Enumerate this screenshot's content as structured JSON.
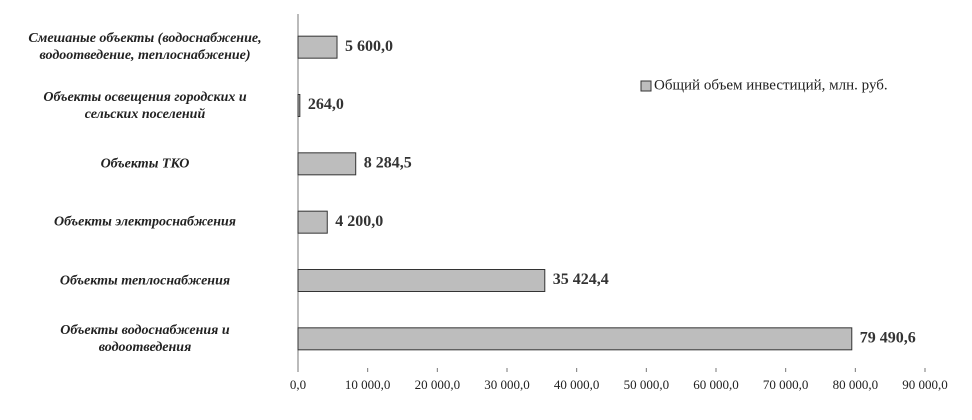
{
  "chart_data": {
    "type": "bar",
    "orientation": "horizontal",
    "categories": [
      "Смешаные объекты (водоснабжение,\nводоотведение, теплоснабжение)",
      "Объекты освещения городских и\nсельских поселений",
      "Объекты ТКО",
      "Объекты электроснабжения",
      "Объекты теплоснабжения",
      "Объекты водоснабжения и\nводоотведения"
    ],
    "series": [
      {
        "name": "Общий объем инвестиций, млн. руб.",
        "color": "#bdbdbd",
        "values": [
          5600.0,
          264.0,
          8284.5,
          4200.0,
          35424.4,
          79490.6
        ],
        "value_labels": [
          "5 600,0",
          "264,0",
          "8 284,5",
          "4 200,0",
          "35 424,4",
          "79 490,6"
        ]
      }
    ],
    "xlim": [
      0,
      90000
    ],
    "xticks": [
      {
        "value": 0,
        "label": "0,0"
      },
      {
        "value": 10000,
        "label": "10 000,0"
      },
      {
        "value": 20000,
        "label": "20 000,0"
      },
      {
        "value": 30000,
        "label": "30 000,0"
      },
      {
        "value": 40000,
        "label": "40 000,0"
      },
      {
        "value": 50000,
        "label": "50 000,0"
      },
      {
        "value": 60000,
        "label": "60 000,0"
      },
      {
        "value": 70000,
        "label": "70 000,0"
      },
      {
        "value": 80000,
        "label": "80 000,0"
      },
      {
        "value": 90000,
        "label": "90 000,0"
      }
    ],
    "legend": "right",
    "grid": false
  }
}
